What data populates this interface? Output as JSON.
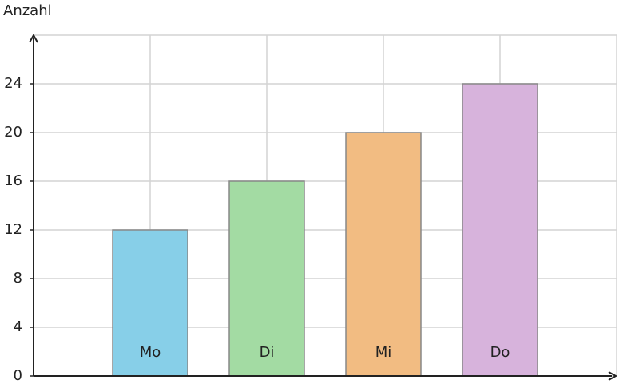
{
  "chart_data": {
    "type": "bar",
    "y_label": "Anzahl",
    "categories": [
      "Mo",
      "Di",
      "Mi",
      "Do"
    ],
    "values": [
      12,
      16,
      20,
      24
    ],
    "colors": [
      "#87cfe8",
      "#a3dba3",
      "#f2bc82",
      "#d7b3dc"
    ],
    "ylim": [
      0,
      28
    ],
    "yticks": [
      0,
      4,
      8,
      12,
      16,
      20,
      24
    ],
    "grid": true
  }
}
